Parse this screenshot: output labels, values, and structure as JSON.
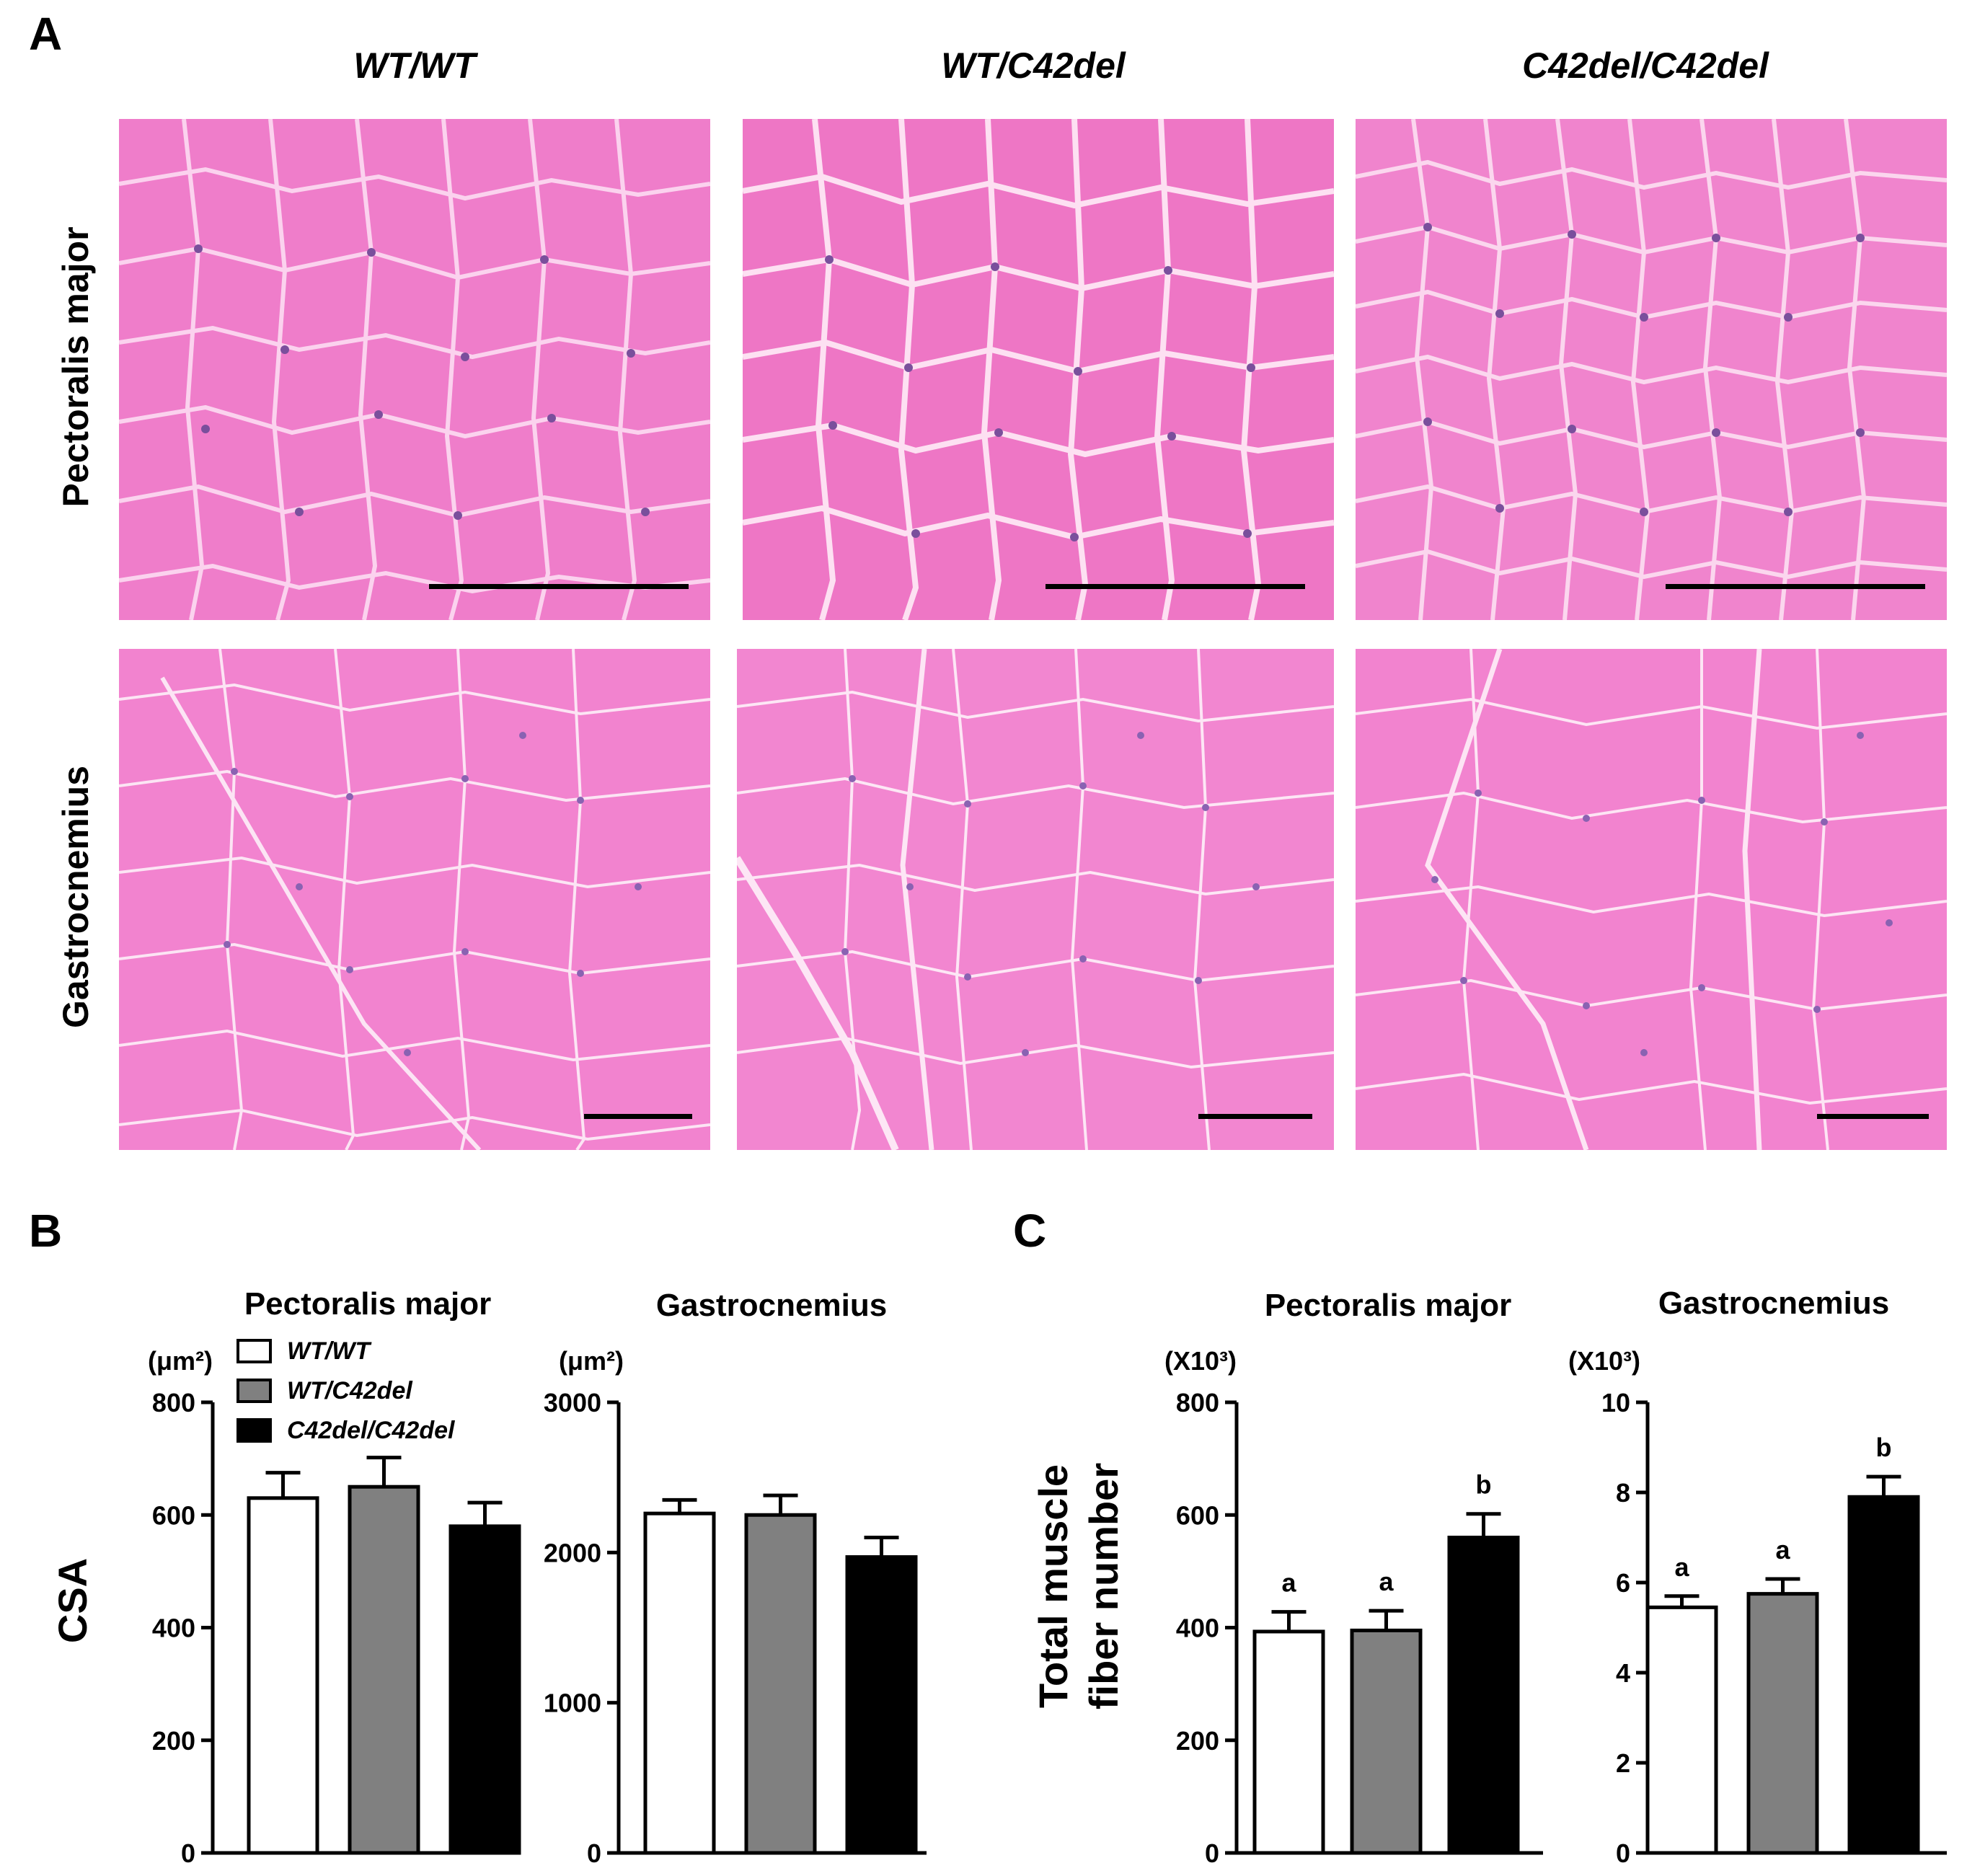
{
  "panel_labels": {
    "a": "A",
    "b": "B",
    "c": "C"
  },
  "panel_a": {
    "columns": [
      "WT/WT",
      "WT/C42del",
      "C42del/C42del"
    ],
    "rows": [
      "Pectoralis major",
      "Gastrocnemius"
    ]
  },
  "colors": {
    "wt": "#ffffff",
    "het": "#808080",
    "hom": "#000000",
    "tissue": "#ee78c6"
  },
  "legend": [
    "WT/WT",
    "WT/C42del",
    "C42del/C42del"
  ],
  "ylabel_b": "CSA",
  "ylabel_c": [
    "Total muscle",
    "fiber number"
  ],
  "chart_data": [
    {
      "type": "bar",
      "panel": "B",
      "title": "Pectoralis major",
      "unit": "(μm²)",
      "categories": [
        "WT/WT",
        "WT/C42del",
        "C42del/C42del"
      ],
      "values": [
        630,
        650,
        580
      ],
      "errors": [
        45,
        52,
        42
      ],
      "ylim": [
        0,
        800
      ],
      "yticks": [
        0,
        200,
        400,
        600,
        800
      ],
      "sig": []
    },
    {
      "type": "bar",
      "panel": "B",
      "title": "Gastrocnemius",
      "unit": "(μm²)",
      "categories": [
        "WT/WT",
        "WT/C42del",
        "C42del/C42del"
      ],
      "values": [
        2260,
        2250,
        1970
      ],
      "errors": [
        90,
        130,
        130
      ],
      "ylim": [
        0,
        3000
      ],
      "yticks": [
        0,
        1000,
        2000,
        3000
      ],
      "sig": []
    },
    {
      "type": "bar",
      "panel": "C",
      "title": "Pectoralis major",
      "unit": "(X10³)",
      "categories": [
        "WT/WT",
        "WT/C42del",
        "C42del/C42del"
      ],
      "values": [
        393,
        395,
        560
      ],
      "errors": [
        35,
        35,
        42
      ],
      "ylim": [
        0,
        800
      ],
      "yticks": [
        0,
        200,
        400,
        600,
        800
      ],
      "sig": [
        "a",
        "a",
        "b"
      ]
    },
    {
      "type": "bar",
      "panel": "C",
      "title": "Gastrocnemius",
      "unit": "(X10³)",
      "categories": [
        "WT/WT",
        "WT/C42del",
        "C42del/C42del"
      ],
      "values": [
        5.45,
        5.75,
        7.9
      ],
      "errors": [
        0.25,
        0.33,
        0.45
      ],
      "ylim": [
        0,
        10
      ],
      "yticks": [
        0,
        2,
        4,
        6,
        8,
        10
      ],
      "sig": [
        "a",
        "a",
        "b"
      ]
    }
  ]
}
